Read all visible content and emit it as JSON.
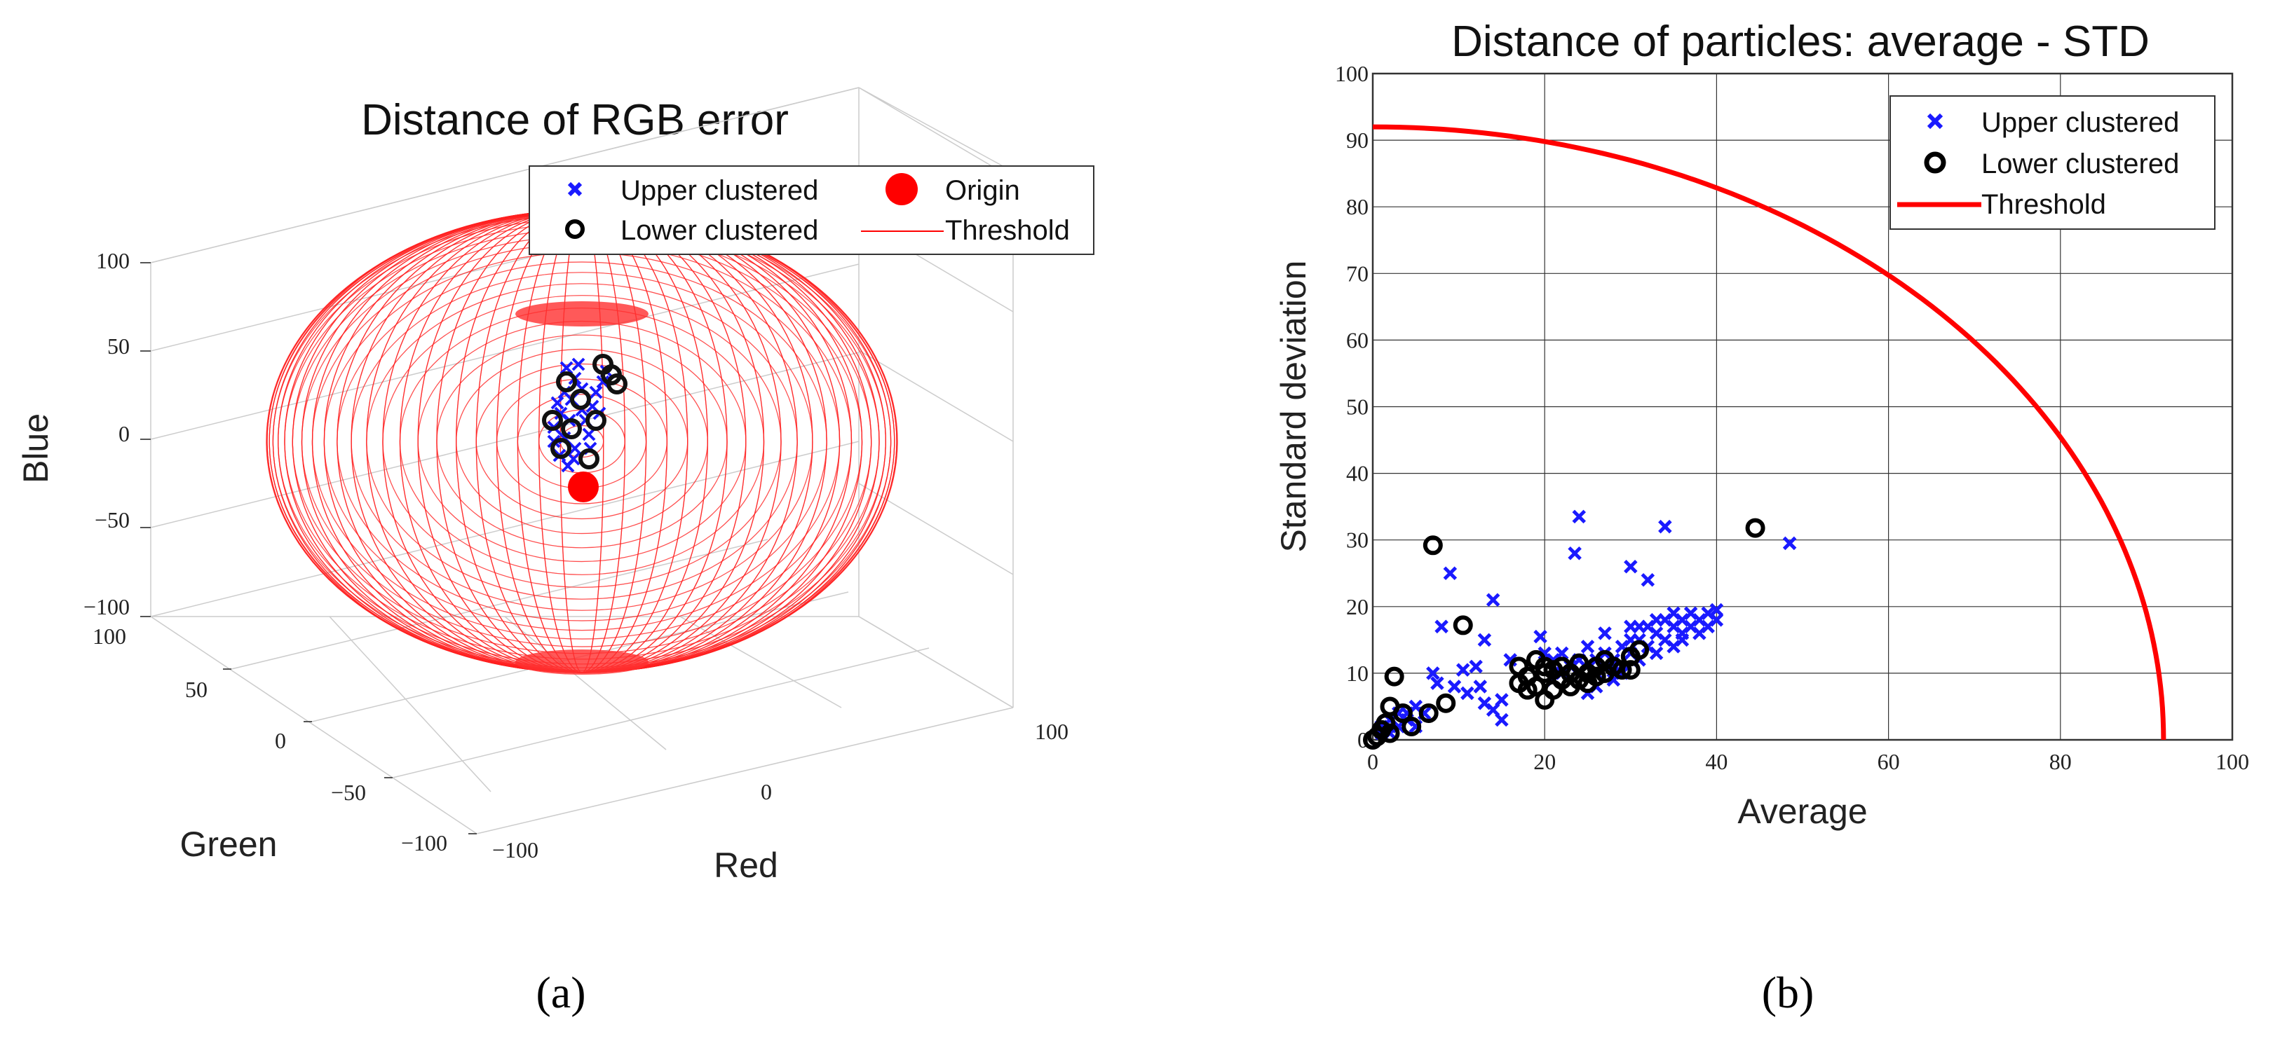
{
  "panels": {
    "a_label": "(a)",
    "b_label": "(b)"
  },
  "chart_data": [
    {
      "type": "scatter3d",
      "title": "Distance of RGB error",
      "xlabel": "Red",
      "ylabel": "Green",
      "zlabel": "Blue",
      "xlim": [
        -100,
        100
      ],
      "ylim": [
        -100,
        100
      ],
      "zlim": [
        -100,
        100
      ],
      "x_ticks": [
        "−100",
        "0",
        "100"
      ],
      "y_ticks": [
        "100",
        "50",
        "0",
        "−50",
        "−100"
      ],
      "z_ticks": [
        "100",
        "50",
        "0",
        "−50",
        "−100"
      ],
      "grid": true,
      "legend": {
        "position": "top",
        "entries": [
          {
            "label": "Upper clustered",
            "marker": "x",
            "color": "#1a1aff"
          },
          {
            "label": "Origin",
            "marker": "filled-circle",
            "color": "#ff0000"
          },
          {
            "label": "Lower clustered",
            "marker": "o",
            "color": "#000000"
          },
          {
            "label": "Threshold",
            "marker": "line",
            "color": "#ff0000"
          }
        ]
      },
      "threshold_radius": 92,
      "origin": [
        0,
        0,
        -30
      ]
    },
    {
      "type": "scatter",
      "title": "Distance of particles: average - STD",
      "xlabel": "Average",
      "ylabel": "Standard deviation",
      "xlim": [
        0,
        100
      ],
      "ylim": [
        0,
        100
      ],
      "x_ticks": [
        0,
        20,
        40,
        60,
        80,
        100
      ],
      "y_ticks": [
        0,
        10,
        20,
        30,
        40,
        50,
        60,
        70,
        80,
        90,
        100
      ],
      "grid": true,
      "legend": {
        "position": "top-right",
        "entries": [
          {
            "label": "Upper clustered",
            "marker": "x",
            "color": "#1a1aff"
          },
          {
            "label": "Lower clustered",
            "marker": "o",
            "color": "#000000"
          },
          {
            "label": "Threshold",
            "marker": "line",
            "color": "#ff0000"
          }
        ]
      },
      "threshold": {
        "type": "quarter-circle",
        "radius": 92
      },
      "series": [
        {
          "name": "Upper clustered",
          "points": [
            [
              24,
              33.5
            ],
            [
              34,
              32
            ],
            [
              23.5,
              28
            ],
            [
              48.5,
              29.5
            ],
            [
              30,
              26
            ],
            [
              32,
              24
            ],
            [
              9,
              25
            ],
            [
              14,
              21
            ],
            [
              8,
              17
            ],
            [
              19.5,
              15.5
            ],
            [
              13,
              15
            ],
            [
              16,
              12
            ],
            [
              12,
              11
            ],
            [
              10.5,
              10.5
            ],
            [
              7,
              10
            ],
            [
              7.5,
              8.5
            ],
            [
              9.5,
              8
            ],
            [
              12.5,
              8
            ],
            [
              11,
              7
            ],
            [
              15,
              6
            ],
            [
              13,
              5.5
            ],
            [
              14,
              4.5
            ],
            [
              15,
              3
            ],
            [
              20,
              13
            ],
            [
              21,
              12
            ],
            [
              22,
              10
            ],
            [
              23,
              11
            ],
            [
              25,
              14
            ],
            [
              26,
              12
            ],
            [
              27,
              13
            ],
            [
              27,
              16
            ],
            [
              28,
              11
            ],
            [
              29,
              14
            ],
            [
              30,
              13
            ],
            [
              30,
              17
            ],
            [
              31,
              15
            ],
            [
              32,
              14
            ],
            [
              32,
              17
            ],
            [
              33,
              16
            ],
            [
              34,
              15
            ],
            [
              34,
              18
            ],
            [
              35,
              17
            ],
            [
              35,
              19
            ],
            [
              36,
              16
            ],
            [
              36,
              18
            ],
            [
              37,
              17
            ],
            [
              37,
              19
            ],
            [
              38,
              18
            ],
            [
              38,
              16
            ],
            [
              39,
              17
            ],
            [
              39,
              19
            ],
            [
              40,
              18
            ],
            [
              40,
              19.5
            ],
            [
              26,
              8
            ],
            [
              25,
              7
            ],
            [
              28,
              9
            ],
            [
              29,
              10
            ],
            [
              31,
              12
            ],
            [
              33,
              13
            ],
            [
              24,
              12
            ],
            [
              22,
              13
            ],
            [
              21,
              9
            ],
            [
              26,
              10
            ],
            [
              36,
              15
            ],
            [
              35,
              14
            ],
            [
              33,
              18
            ],
            [
              31,
              17
            ],
            [
              30,
              15
            ],
            [
              28,
              12
            ],
            [
              3,
              2
            ],
            [
              2,
              1
            ],
            [
              1,
              1
            ],
            [
              4,
              3
            ],
            [
              5,
              2
            ],
            [
              6,
              4
            ],
            [
              5,
              5
            ],
            [
              4,
              4
            ],
            [
              2,
              3
            ],
            [
              3,
              4
            ],
            [
              1,
              2
            ]
          ]
        },
        {
          "name": "Lower clustered",
          "points": [
            [
              44.5,
              31.8
            ],
            [
              7,
              29.2
            ],
            [
              10.5,
              17.2
            ],
            [
              2.5,
              9.5
            ],
            [
              8.5,
              5.5
            ],
            [
              3.5,
              4
            ],
            [
              6.5,
              4
            ],
            [
              2,
              5
            ],
            [
              4.5,
              2
            ],
            [
              1,
              1.5
            ],
            [
              0.5,
              0.5
            ],
            [
              1.5,
              2.5
            ],
            [
              0,
              0
            ],
            [
              2,
              1
            ],
            [
              17,
              8.5
            ],
            [
              18,
              9.5
            ],
            [
              19,
              8
            ],
            [
              20,
              10
            ],
            [
              20,
              6
            ],
            [
              21,
              7.5
            ],
            [
              21,
              10.5
            ],
            [
              22,
              9
            ],
            [
              22,
              11
            ],
            [
              23,
              8
            ],
            [
              23,
              10
            ],
            [
              24,
              9
            ],
            [
              24,
              11.5
            ],
            [
              25,
              10
            ],
            [
              25,
              8.5
            ],
            [
              26,
              11
            ],
            [
              26,
              9.5
            ],
            [
              27,
              10
            ],
            [
              27,
              12
            ],
            [
              28,
              11
            ],
            [
              29,
              10.5
            ],
            [
              30,
              12.5
            ],
            [
              30,
              10.5
            ],
            [
              31,
              13.5
            ],
            [
              19,
              12
            ],
            [
              20,
              11
            ],
            [
              17,
              11
            ],
            [
              18,
              7.5
            ]
          ]
        }
      ]
    }
  ]
}
